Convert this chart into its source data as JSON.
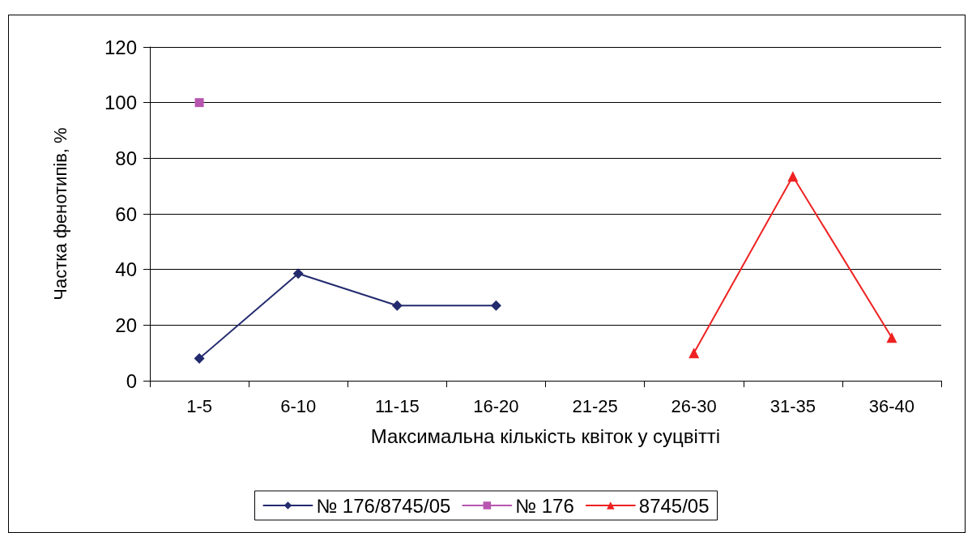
{
  "chart_data": {
    "type": "line",
    "xlabel": "Максимальна кількість квіток у суцвітті",
    "ylabel": "Частка фенотипів, %",
    "categories": [
      "1-5",
      "6-10",
      "11-15",
      "16-20",
      "21-25",
      "26-30",
      "31-35",
      "36-40"
    ],
    "series": [
      {
        "name": "№ 176/8745/05",
        "color": "#232a6e",
        "marker": "diamond",
        "values": [
          8,
          38.5,
          27,
          27,
          null,
          null,
          null,
          null
        ]
      },
      {
        "name": "№ 176",
        "color": "#b855b0",
        "marker": "square",
        "values": [
          100,
          null,
          null,
          null,
          null,
          null,
          null,
          null
        ]
      },
      {
        "name": "8745/05",
        "color": "#ee2222",
        "marker": "triangle",
        "values": [
          null,
          null,
          null,
          null,
          null,
          10,
          73.5,
          15.5
        ]
      }
    ],
    "ylim": [
      0,
      120
    ],
    "yticks": [
      0,
      20,
      40,
      60,
      80,
      100,
      120
    ],
    "grid": "y",
    "legend": "bottom",
    "line_style": "solid"
  }
}
